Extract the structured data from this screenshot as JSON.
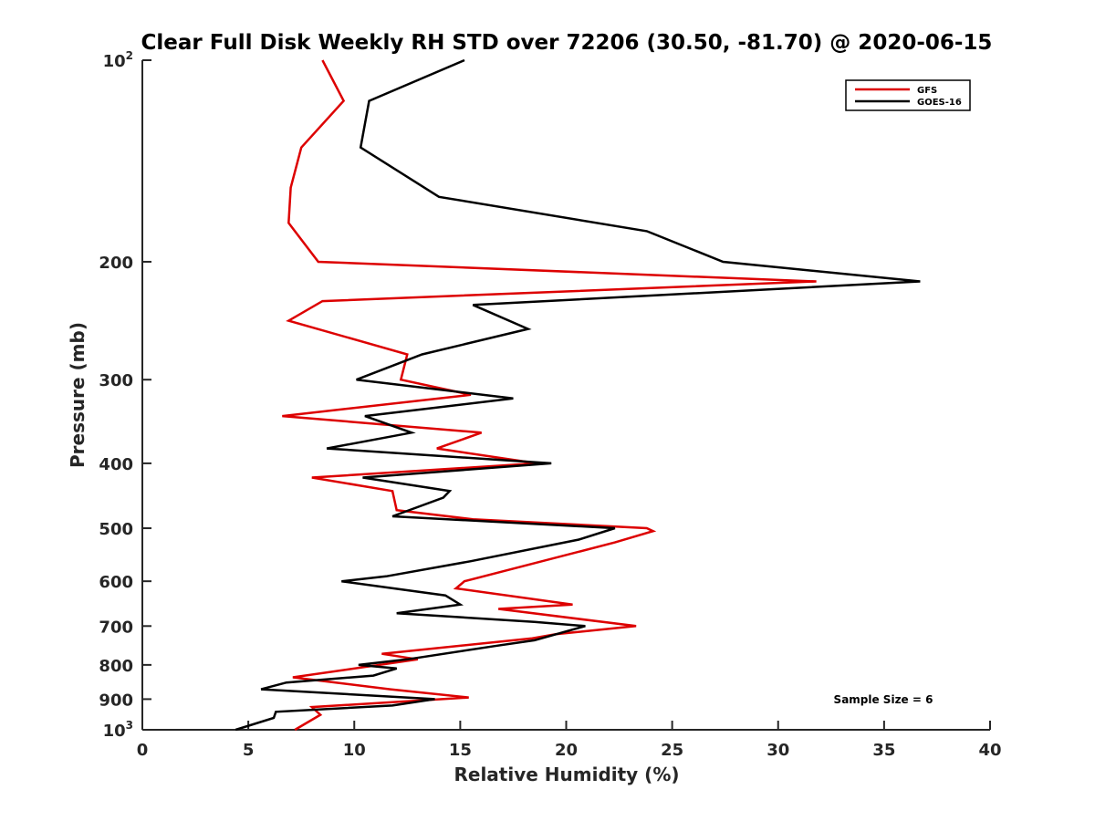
{
  "chart_data": {
    "type": "line",
    "title": "Clear Full Disk Weekly RH STD over 72206 (30.50, -81.70) @ 2020-06-15",
    "xlabel": "Relative Humidity (%)",
    "ylabel": "Pressure (mb)",
    "xlim": [
      0,
      40
    ],
    "ylim": [
      100,
      1000
    ],
    "y_scale": "log",
    "y_reversed": true,
    "x_ticks": [
      0,
      5,
      10,
      15,
      20,
      25,
      30,
      35,
      40
    ],
    "y_ticks": [
      {
        "value": 100,
        "label": "10",
        "exp": "2"
      },
      {
        "value": 200,
        "label": "200"
      },
      {
        "value": 300,
        "label": "300"
      },
      {
        "value": 400,
        "label": "400"
      },
      {
        "value": 500,
        "label": "500"
      },
      {
        "value": 600,
        "label": "600"
      },
      {
        "value": 700,
        "label": "700"
      },
      {
        "value": 800,
        "label": "800"
      },
      {
        "value": 900,
        "label": "900"
      },
      {
        "value": 1000,
        "label": "10",
        "exp": "3"
      }
    ],
    "grid": false,
    "legend_position": "top-right",
    "annotation": "Sample Size = 6",
    "series": [
      {
        "name": "GFS",
        "color": "#dd0000",
        "points": [
          [
            8.5,
            100
          ],
          [
            9.5,
            115
          ],
          [
            7.5,
            135
          ],
          [
            7.0,
            155
          ],
          [
            6.9,
            175
          ],
          [
            8.3,
            200
          ],
          [
            31.8,
            214
          ],
          [
            8.5,
            229
          ],
          [
            6.9,
            245
          ],
          [
            12.5,
            275
          ],
          [
            12.2,
            300
          ],
          [
            15.5,
            316
          ],
          [
            6.6,
            340
          ],
          [
            16.0,
            360
          ],
          [
            13.9,
            380
          ],
          [
            18.6,
            400
          ],
          [
            8.0,
            420
          ],
          [
            11.8,
            440
          ],
          [
            12.0,
            470
          ],
          [
            15.6,
            485
          ],
          [
            23.8,
            500
          ],
          [
            24.1,
            505
          ],
          [
            22.3,
            525
          ],
          [
            15.2,
            600
          ],
          [
            14.8,
            615
          ],
          [
            20.3,
            650
          ],
          [
            16.8,
            660
          ],
          [
            23.3,
            700
          ],
          [
            19.5,
            720
          ],
          [
            18.4,
            730
          ],
          [
            11.3,
            770
          ],
          [
            13.0,
            785
          ],
          [
            7.1,
            835
          ],
          [
            11.7,
            870
          ],
          [
            15.4,
            895
          ],
          [
            8.0,
            925
          ],
          [
            8.4,
            950
          ],
          [
            7.2,
            1000
          ]
        ]
      },
      {
        "name": "GOES-16",
        "color": "#000000",
        "points": [
          [
            15.2,
            100
          ],
          [
            10.7,
            115
          ],
          [
            10.3,
            135
          ],
          [
            14.0,
            160
          ],
          [
            23.8,
            180
          ],
          [
            27.4,
            200
          ],
          [
            36.7,
            214
          ],
          [
            15.6,
            232
          ],
          [
            18.2,
            252
          ],
          [
            13.2,
            275
          ],
          [
            10.1,
            300
          ],
          [
            17.5,
            320
          ],
          [
            10.5,
            340
          ],
          [
            12.7,
            360
          ],
          [
            8.7,
            380
          ],
          [
            19.3,
            400
          ],
          [
            10.4,
            420
          ],
          [
            14.5,
            440
          ],
          [
            14.2,
            450
          ],
          [
            11.8,
            480
          ],
          [
            22.3,
            500
          ],
          [
            20.6,
            520
          ],
          [
            15.5,
            560
          ],
          [
            11.5,
            590
          ],
          [
            9.4,
            600
          ],
          [
            14.3,
            630
          ],
          [
            15.0,
            650
          ],
          [
            12.0,
            670
          ],
          [
            18.5,
            690
          ],
          [
            20.9,
            700
          ],
          [
            18.5,
            735
          ],
          [
            16.6,
            750
          ],
          [
            12.5,
            785
          ],
          [
            10.2,
            800
          ],
          [
            12.0,
            810
          ],
          [
            10.9,
            830
          ],
          [
            6.8,
            850
          ],
          [
            5.6,
            870
          ],
          [
            13.8,
            900
          ],
          [
            11.8,
            920
          ],
          [
            6.3,
            940
          ],
          [
            6.2,
            960
          ],
          [
            4.4,
            1000
          ]
        ]
      }
    ]
  }
}
